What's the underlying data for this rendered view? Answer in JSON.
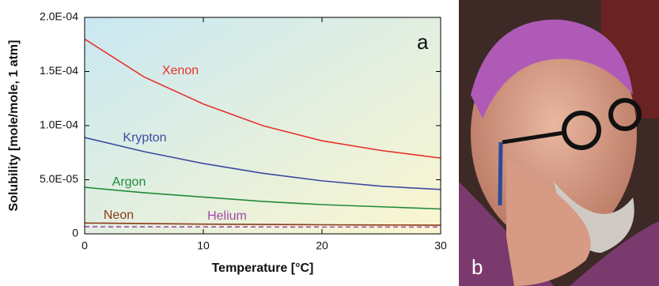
{
  "chart_data": {
    "type": "line",
    "panel_label": "a",
    "xlabel": "Temperature [°C]",
    "ylabel": "Solubility [mole/mole, 1 atm]",
    "x": [
      0,
      5,
      10,
      15,
      20,
      25,
      30
    ],
    "series": [
      {
        "name": "Xenon",
        "color": "#e8312a",
        "values": [
          0.00018,
          0.000145,
          0.00012,
          0.0001,
          8.6e-05,
          7.7e-05,
          7e-05
        ]
      },
      {
        "name": "Krypton",
        "color": "#3a4aa0",
        "values": [
          8.9e-05,
          7.6e-05,
          6.5e-05,
          5.6e-05,
          4.9e-05,
          4.4e-05,
          4.1e-05
        ]
      },
      {
        "name": "Argon",
        "color": "#1f8a3a",
        "values": [
          4.3e-05,
          3.8e-05,
          3.4e-05,
          3e-05,
          2.7e-05,
          2.5e-05,
          2.3e-05
        ]
      },
      {
        "name": "Neon",
        "color": "#8b3a1a",
        "values": [
          1e-05,
          9.5e-06,
          9e-06,
          8.7e-06,
          8.4e-06,
          8.2e-06,
          8e-06
        ]
      },
      {
        "name": "Helium",
        "color": "#a04aa8",
        "linestyle": "dashed",
        "values": [
          6.6e-06,
          6.5e-06,
          6.4e-06,
          6.4e-06,
          6.3e-06,
          6.3e-06,
          6.3e-06
        ]
      }
    ],
    "xlim": [
      0,
      30
    ],
    "xticks": [
      0,
      10,
      20,
      30
    ],
    "ylim": [
      0,
      0.0002
    ],
    "yticks": [
      0,
      {
        "value": 5e-05,
        "label": "5.0E-05"
      },
      {
        "value": 0.0001,
        "label": "1.0E-04"
      },
      {
        "value": 0.00015,
        "label": "1.5E-04"
      },
      {
        "value": 0.0002,
        "label": "2.0E-04"
      }
    ]
  },
  "photo": {
    "label": "b"
  }
}
